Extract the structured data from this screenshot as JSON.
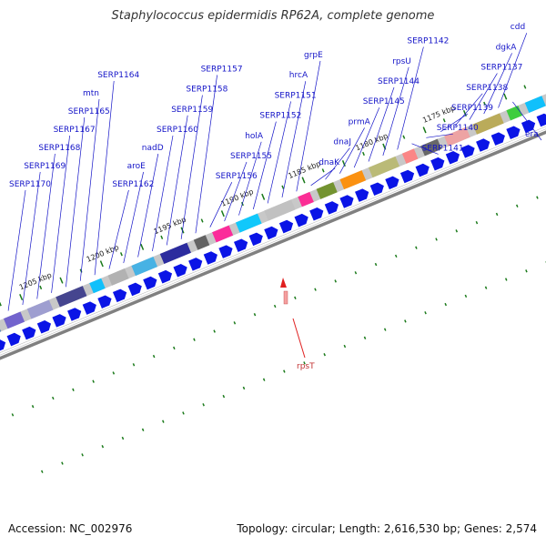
{
  "title": "Staphylococcus epidermidis RP62A, complete genome",
  "footer": {
    "accession": "Accession: NC_002976",
    "summary": "Topology: circular; Length: 2,616,530 bp; Genes: 2,574"
  },
  "colors": {
    "gene_label": "#1414c8",
    "forward_arrow": "#0a14e6",
    "tick": "#1a7a1a",
    "pointer": "#e02020",
    "ring_shadow": "#808080"
  },
  "ruler_labels": [
    "1205 kbp",
    "1200 kbp",
    "1195 kbp",
    "1190 kbp",
    "1185 kbp",
    "1180 kbp",
    "1175 kbp"
  ],
  "gene_labels": [
    "SERP1170",
    "SERP1169",
    "SERP1168",
    "SERP1167",
    "SERP1165",
    "mtn",
    "SERP1164",
    "SERP1162",
    "aroE",
    "nadD",
    "SERP1160",
    "SERP1159",
    "SERP1158",
    "SERP1157",
    "SERP1156",
    "SERP1155",
    "holA",
    "SERP1152",
    "SERP1151",
    "hrcA",
    "grpE",
    "dnaK",
    "dnaJ",
    "prmA",
    "SERP1145",
    "SERP1144",
    "rpsU",
    "SERP1142",
    "SERP1141",
    "SERP1140",
    "SERP1139",
    "SERP1138",
    "SERP1137",
    "dgkA",
    "cdd",
    "era"
  ],
  "pointer_label": "rpsT"
}
